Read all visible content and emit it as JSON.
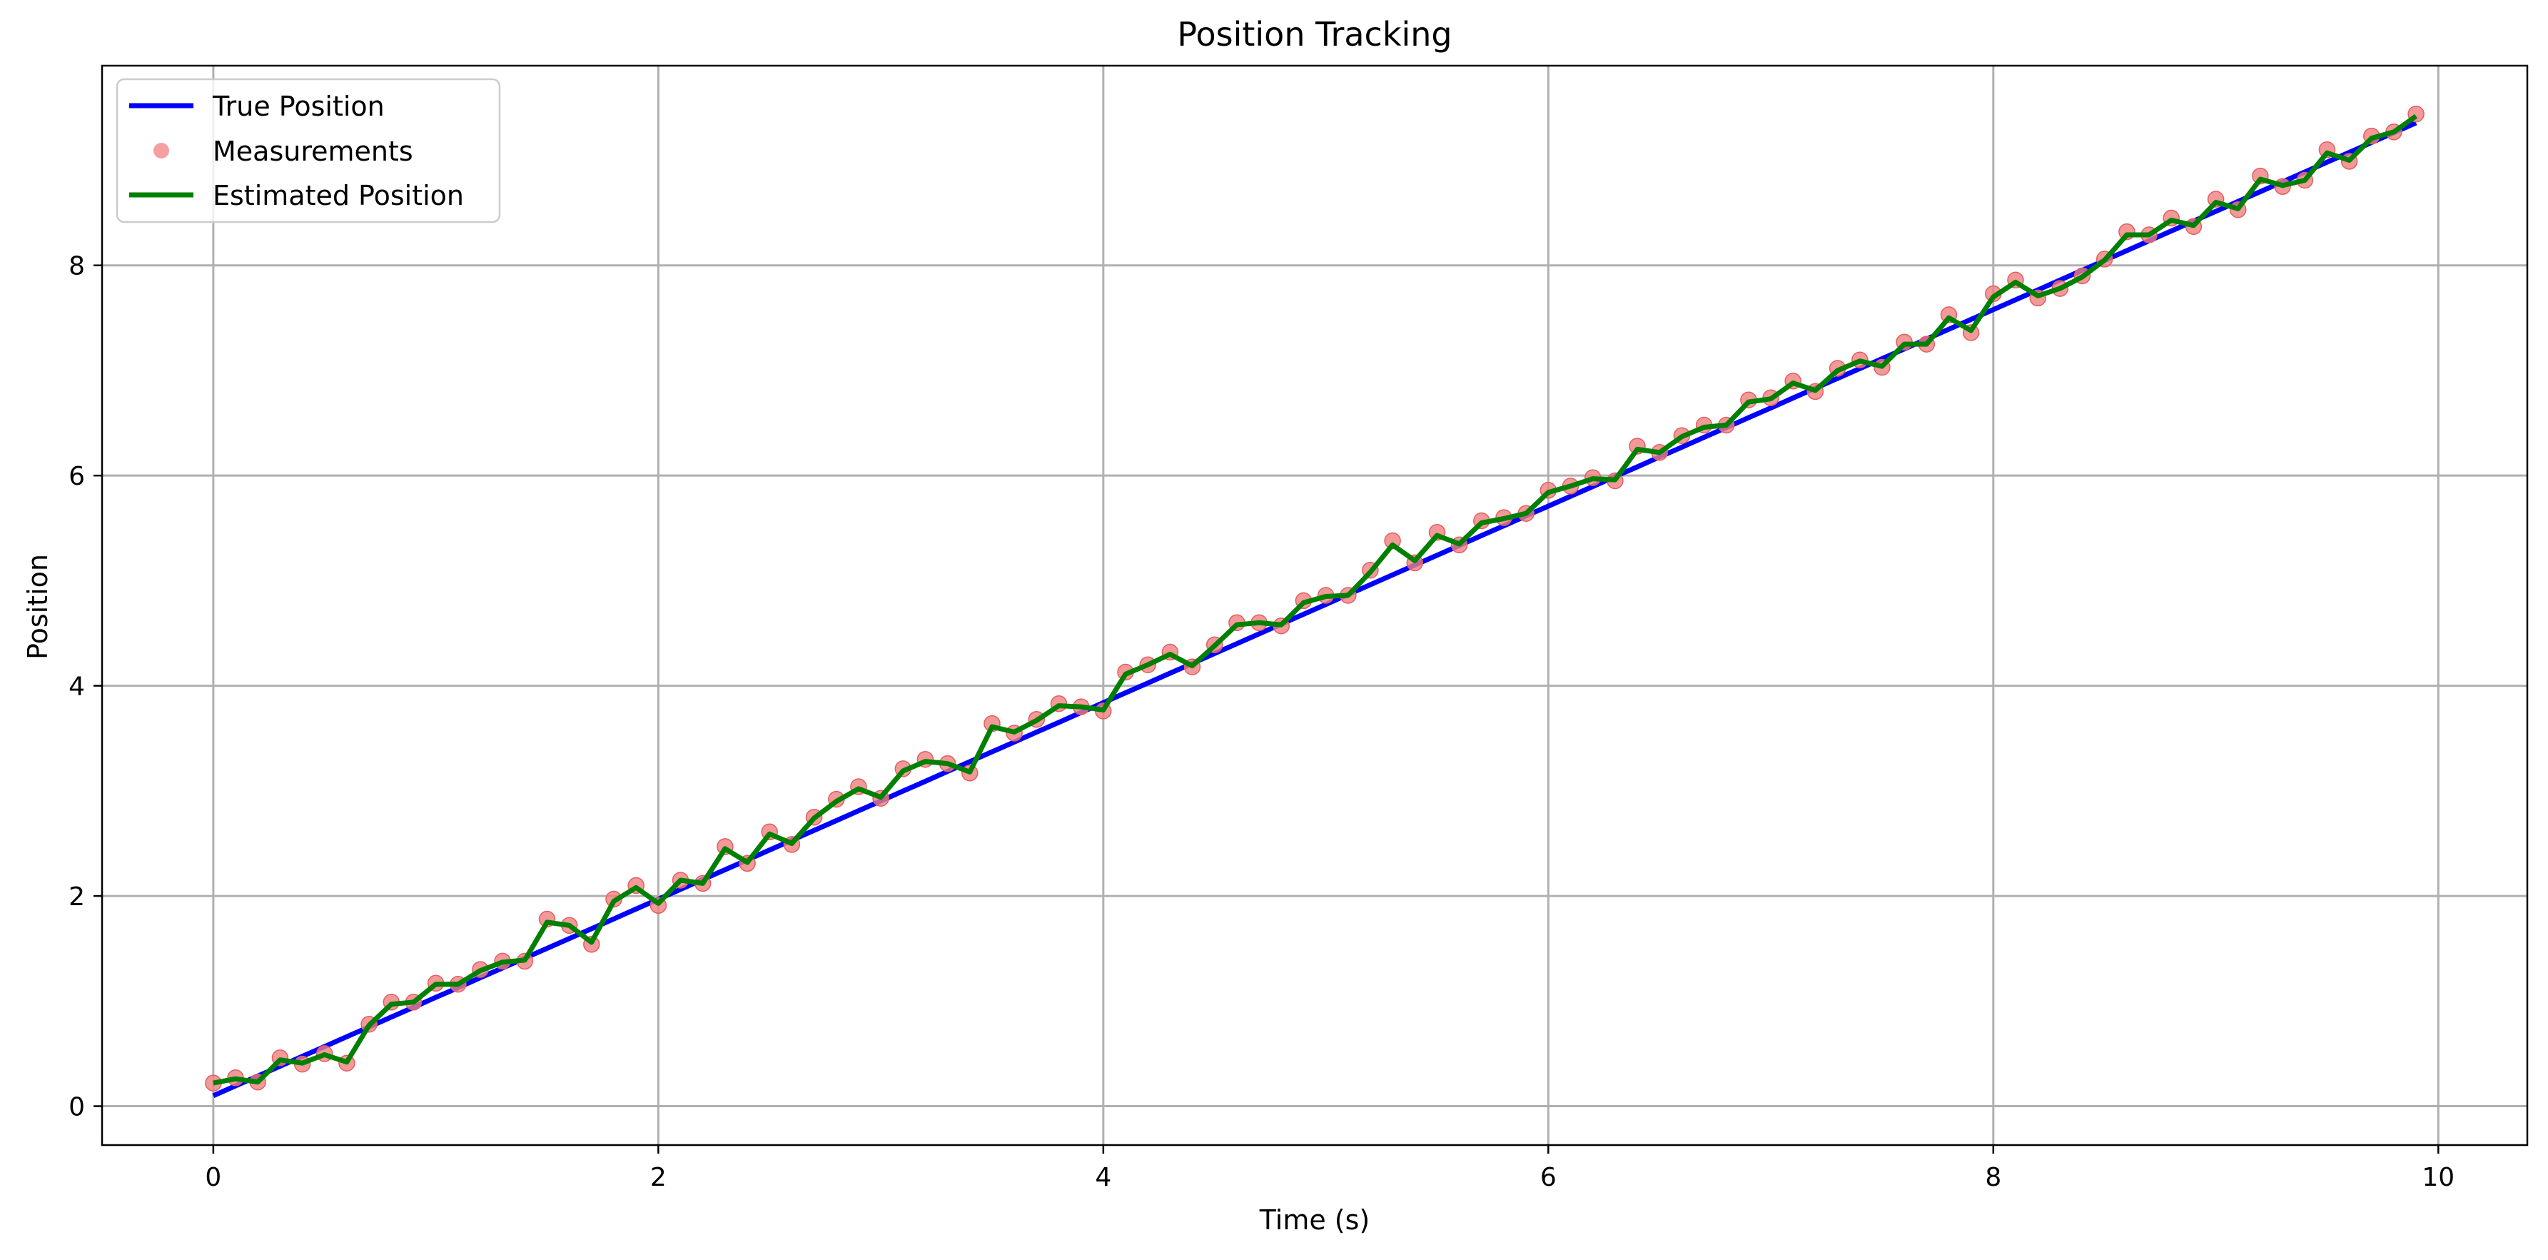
{
  "chart_data": {
    "type": "line",
    "title": "Position Tracking",
    "xlabel": "Time (s)",
    "ylabel": "Position",
    "xlim": [
      -0.5,
      10.4
    ],
    "ylim": [
      -0.37,
      9.9
    ],
    "xticks": [
      0,
      2,
      4,
      6,
      8,
      10
    ],
    "yticks": [
      0,
      2,
      4,
      6,
      8
    ],
    "grid": true,
    "legend_position": "top-left",
    "x": [
      0.0,
      0.1,
      0.2,
      0.3,
      0.4,
      0.5,
      0.6,
      0.7,
      0.8,
      0.9,
      1.0,
      1.1,
      1.2,
      1.3,
      1.4,
      1.5,
      1.6,
      1.7,
      1.8,
      1.9,
      2.0,
      2.1,
      2.2,
      2.3,
      2.4,
      2.5,
      2.6,
      2.7,
      2.8,
      2.9,
      3.0,
      3.1,
      3.2,
      3.3,
      3.4,
      3.5,
      3.6,
      3.7,
      3.8,
      3.9,
      4.0,
      4.1,
      4.2,
      4.3,
      4.4,
      4.5,
      4.6,
      4.7,
      4.8,
      4.9,
      5.0,
      5.1,
      5.2,
      5.3,
      5.4,
      5.5,
      5.6,
      5.7,
      5.8,
      5.9,
      6.0,
      6.1,
      6.2,
      6.3,
      6.4,
      6.5,
      6.6,
      6.7,
      6.8,
      6.9,
      7.0,
      7.1,
      7.2,
      7.3,
      7.4,
      7.5,
      7.6,
      7.7,
      7.8,
      7.9,
      8.0,
      8.1,
      8.2,
      8.3,
      8.4,
      8.5,
      8.6,
      8.7,
      8.8,
      8.9,
      9.0,
      9.1,
      9.2,
      9.3,
      9.4,
      9.5,
      9.6,
      9.7,
      9.8,
      9.9
    ],
    "series": [
      {
        "name": "True Position",
        "style": "line",
        "color": "#0000ff",
        "values": [
          0.1,
          0.193,
          0.287,
          0.38,
          0.474,
          0.567,
          0.661,
          0.754,
          0.848,
          0.941,
          1.035,
          1.128,
          1.222,
          1.315,
          1.408,
          1.502,
          1.595,
          1.689,
          1.782,
          1.876,
          1.969,
          2.063,
          2.156,
          2.25,
          2.343,
          2.437,
          2.53,
          2.624,
          2.717,
          2.811,
          2.904,
          2.998,
          3.091,
          3.185,
          3.278,
          3.372,
          3.465,
          3.559,
          3.652,
          3.746,
          3.839,
          3.933,
          4.026,
          4.12,
          4.213,
          4.307,
          4.4,
          4.494,
          4.587,
          4.681,
          4.774,
          4.868,
          4.961,
          5.055,
          5.148,
          5.242,
          5.335,
          5.429,
          5.522,
          5.616,
          5.709,
          5.803,
          5.896,
          5.99,
          6.083,
          6.177,
          6.27,
          6.364,
          6.457,
          6.551,
          6.644,
          6.738,
          6.831,
          6.925,
          7.018,
          7.112,
          7.205,
          7.299,
          7.392,
          7.486,
          7.579,
          7.673,
          7.766,
          7.86,
          7.953,
          8.047,
          8.14,
          8.234,
          8.327,
          8.421,
          8.514,
          8.608,
          8.701,
          8.795,
          8.888,
          8.982,
          9.075,
          9.169,
          9.262,
          9.356
        ]
      },
      {
        "name": "Measurements",
        "style": "scatter",
        "color": "#f08080",
        "values": [
          0.22,
          0.27,
          0.23,
          0.46,
          0.4,
          0.5,
          0.41,
          0.78,
          0.99,
          0.99,
          1.17,
          1.16,
          1.3,
          1.38,
          1.38,
          1.78,
          1.72,
          1.54,
          1.97,
          2.1,
          1.91,
          2.15,
          2.12,
          2.47,
          2.31,
          2.61,
          2.49,
          2.75,
          2.92,
          3.04,
          2.93,
          3.21,
          3.3,
          3.26,
          3.17,
          3.64,
          3.55,
          3.68,
          3.83,
          3.8,
          3.76,
          4.13,
          4.2,
          4.32,
          4.18,
          4.39,
          4.6,
          4.6,
          4.57,
          4.81,
          4.86,
          4.86,
          5.1,
          5.38,
          5.17,
          5.46,
          5.34,
          5.57,
          5.6,
          5.64,
          5.86,
          5.9,
          5.98,
          5.95,
          6.28,
          6.22,
          6.38,
          6.48,
          6.48,
          6.72,
          6.74,
          6.9,
          6.8,
          7.02,
          7.1,
          7.03,
          7.27,
          7.25,
          7.53,
          7.36,
          7.73,
          7.86,
          7.69,
          7.78,
          7.9,
          8.06,
          8.32,
          8.29,
          8.45,
          8.37,
          8.63,
          8.53,
          8.85,
          8.75,
          8.81,
          9.1,
          8.99,
          9.23,
          9.27,
          9.44
        ]
      },
      {
        "name": "Estimated Position",
        "style": "line",
        "color": "#008000",
        "values": [
          0.22,
          0.26,
          0.23,
          0.44,
          0.41,
          0.49,
          0.42,
          0.77,
          0.97,
          0.99,
          1.16,
          1.16,
          1.29,
          1.37,
          1.39,
          1.75,
          1.72,
          1.56,
          1.95,
          2.08,
          1.93,
          2.15,
          2.12,
          2.45,
          2.32,
          2.59,
          2.5,
          2.74,
          2.9,
          3.02,
          2.94,
          3.19,
          3.28,
          3.26,
          3.18,
          3.61,
          3.56,
          3.67,
          3.81,
          3.8,
          3.77,
          4.11,
          4.2,
          4.3,
          4.19,
          4.38,
          4.58,
          4.6,
          4.58,
          4.79,
          4.85,
          4.86,
          5.08,
          5.34,
          5.19,
          5.43,
          5.35,
          5.55,
          5.59,
          5.64,
          5.84,
          5.9,
          5.97,
          5.96,
          6.25,
          6.22,
          6.37,
          6.46,
          6.48,
          6.7,
          6.73,
          6.88,
          6.81,
          7.0,
          7.09,
          7.04,
          7.25,
          7.25,
          7.5,
          7.38,
          7.7,
          7.84,
          7.71,
          7.78,
          7.89,
          8.05,
          8.29,
          8.29,
          8.43,
          8.38,
          8.6,
          8.54,
          8.82,
          8.76,
          8.81,
          9.07,
          9.0,
          9.21,
          9.27,
          9.42
        ]
      }
    ]
  }
}
